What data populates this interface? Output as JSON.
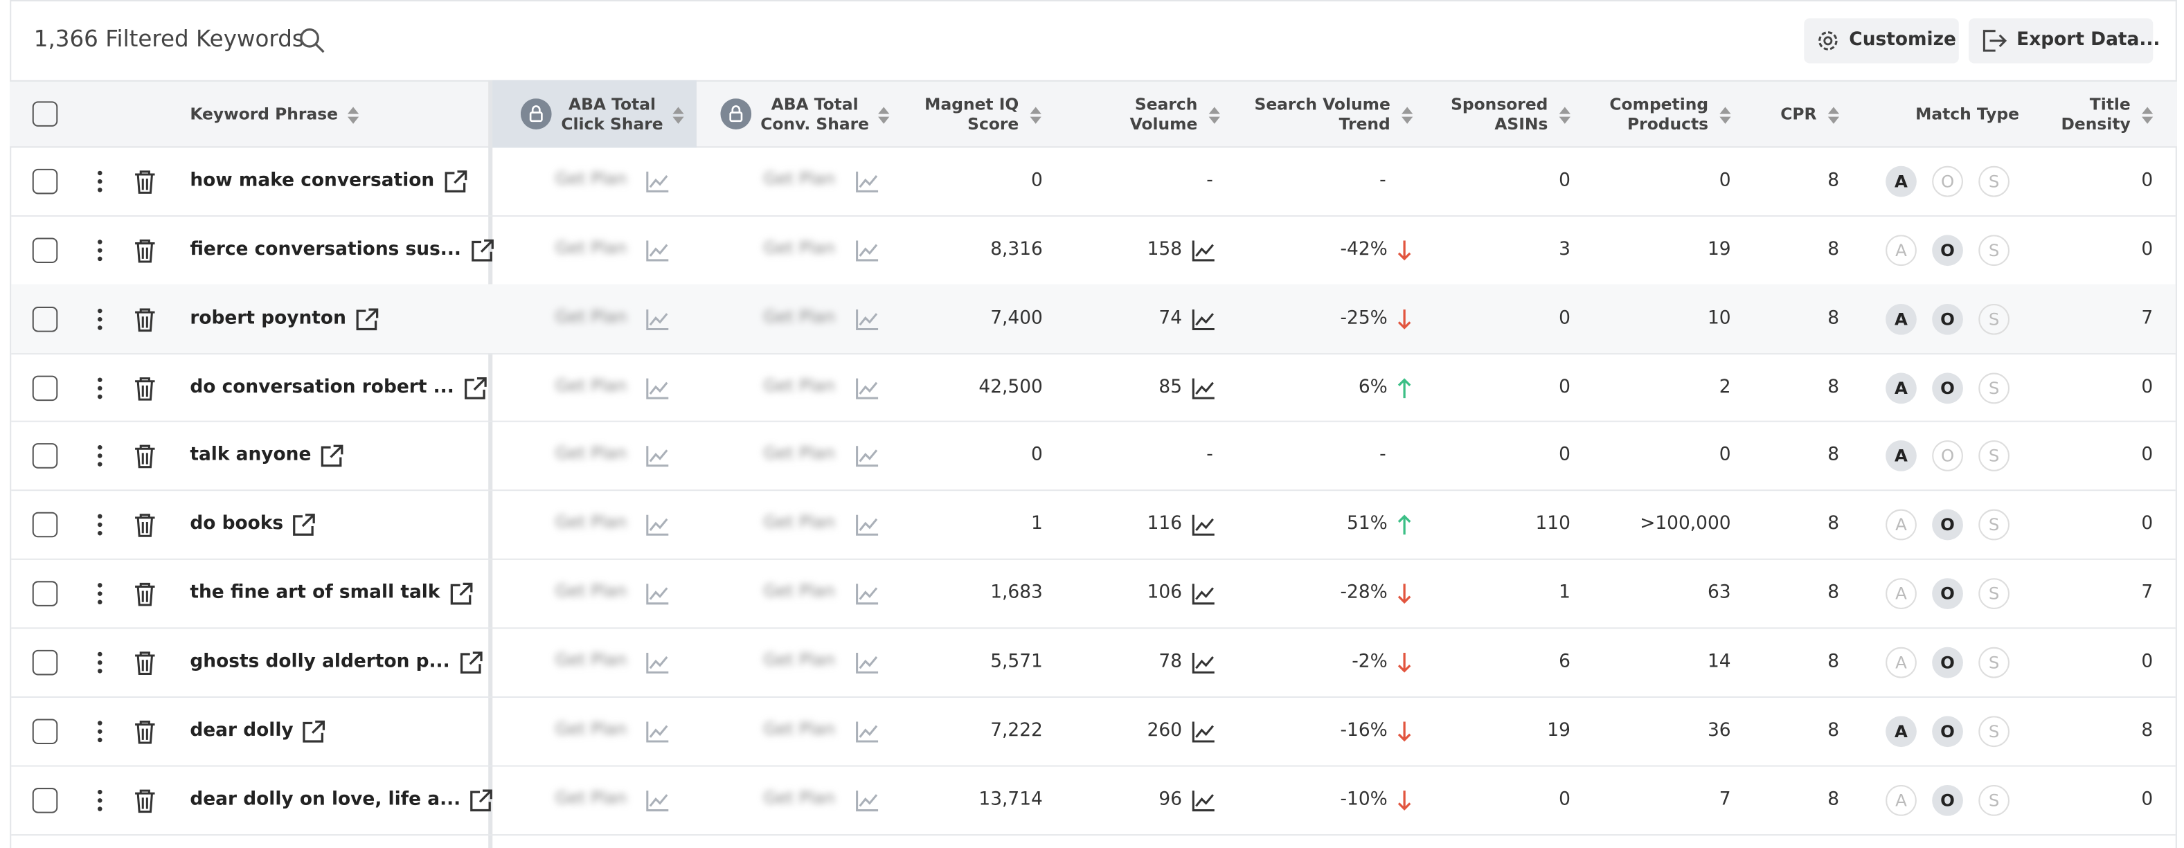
{
  "header": {
    "title": "1,366 Filtered Keywords",
    "buttons": [
      "Customize",
      "Export Data..."
    ]
  },
  "table": {
    "columns": [
      [
        "Keyword Phrase"
      ],
      [
        "ABA Total",
        "Click Share"
      ],
      [
        "ABA Total",
        "Conv. Share"
      ],
      [
        "Magnet IQ",
        "Score"
      ],
      [
        "Search",
        "Volume"
      ],
      [
        "Search Volume",
        "Trend"
      ],
      [
        "Sponsored",
        "ASINs"
      ],
      [
        "Competing",
        "Products"
      ],
      [
        "CPR"
      ],
      [
        "Match Type"
      ],
      [
        "Title",
        "Density"
      ]
    ],
    "locked_placeholder": "Get Plan",
    "match_letters": [
      "A",
      "O",
      "S"
    ],
    "rows": [
      {
        "keyword": "how make conversation",
        "magnet_iq": "0",
        "search_volume": "-",
        "trend": "-",
        "trend_dir": null,
        "sponsored_asins": "0",
        "competing_products": "0",
        "cpr": "8",
        "match": [
          true,
          false,
          false
        ],
        "title_density": "0"
      },
      {
        "keyword": "fierce conversations sus...",
        "magnet_iq": "8,316",
        "search_volume": "158",
        "trend": "-42%",
        "trend_dir": "down",
        "sponsored_asins": "3",
        "competing_products": "19",
        "cpr": "8",
        "match": [
          false,
          true,
          false
        ],
        "title_density": "0"
      },
      {
        "keyword": "robert poynton",
        "magnet_iq": "7,400",
        "search_volume": "74",
        "trend": "-25%",
        "trend_dir": "down",
        "sponsored_asins": "0",
        "competing_products": "10",
        "cpr": "8",
        "match": [
          true,
          true,
          false
        ],
        "title_density": "7"
      },
      {
        "keyword": "do conversation robert ...",
        "magnet_iq": "42,500",
        "search_volume": "85",
        "trend": "6%",
        "trend_dir": "up",
        "sponsored_asins": "0",
        "competing_products": "2",
        "cpr": "8",
        "match": [
          true,
          true,
          false
        ],
        "title_density": "0"
      },
      {
        "keyword": "talk anyone",
        "magnet_iq": "0",
        "search_volume": "-",
        "trend": "-",
        "trend_dir": null,
        "sponsored_asins": "0",
        "competing_products": "0",
        "cpr": "8",
        "match": [
          true,
          false,
          false
        ],
        "title_density": "0"
      },
      {
        "keyword": "do books",
        "magnet_iq": "1",
        "search_volume": "116",
        "trend": "51%",
        "trend_dir": "up",
        "sponsored_asins": "110",
        "competing_products": ">100,000",
        "cpr": "8",
        "match": [
          false,
          true,
          false
        ],
        "title_density": "0"
      },
      {
        "keyword": "the fine art of small talk",
        "magnet_iq": "1,683",
        "search_volume": "106",
        "trend": "-28%",
        "trend_dir": "down",
        "sponsored_asins": "1",
        "competing_products": "63",
        "cpr": "8",
        "match": [
          false,
          true,
          false
        ],
        "title_density": "7"
      },
      {
        "keyword": "ghosts dolly alderton p...",
        "magnet_iq": "5,571",
        "search_volume": "78",
        "trend": "-2%",
        "trend_dir": "down",
        "sponsored_asins": "6",
        "competing_products": "14",
        "cpr": "8",
        "match": [
          false,
          true,
          false
        ],
        "title_density": "0"
      },
      {
        "keyword": "dear dolly",
        "magnet_iq": "7,222",
        "search_volume": "260",
        "trend": "-16%",
        "trend_dir": "down",
        "sponsored_asins": "19",
        "competing_products": "36",
        "cpr": "8",
        "match": [
          true,
          true,
          false
        ],
        "title_density": "8"
      },
      {
        "keyword": "dear dolly on love, life a...",
        "magnet_iq": "13,714",
        "search_volume": "96",
        "trend": "-10%",
        "trend_dir": "down",
        "sponsored_asins": "0",
        "competing_products": "7",
        "cpr": "8",
        "match": [
          false,
          true,
          false
        ],
        "title_density": "0"
      }
    ]
  }
}
